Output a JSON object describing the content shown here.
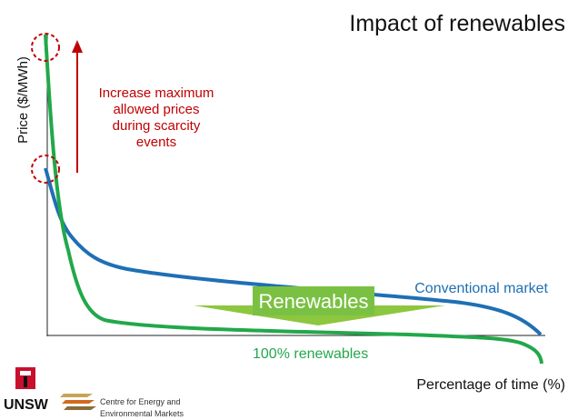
{
  "title": "Impact of renewables",
  "y_axis_label": "Price ($/MWh)",
  "x_axis_label": "Percentage of time (%)",
  "annotation": [
    "Increase maximum",
    "allowed prices",
    "during scarcity",
    "events"
  ],
  "curves": {
    "conventional": "Conventional market",
    "renewables": "100% renewables"
  },
  "arrow_label": "Renewables",
  "footer": {
    "unsw": "UNSW",
    "centre": [
      "Centre for Energy and",
      "Environmental Markets"
    ]
  }
}
